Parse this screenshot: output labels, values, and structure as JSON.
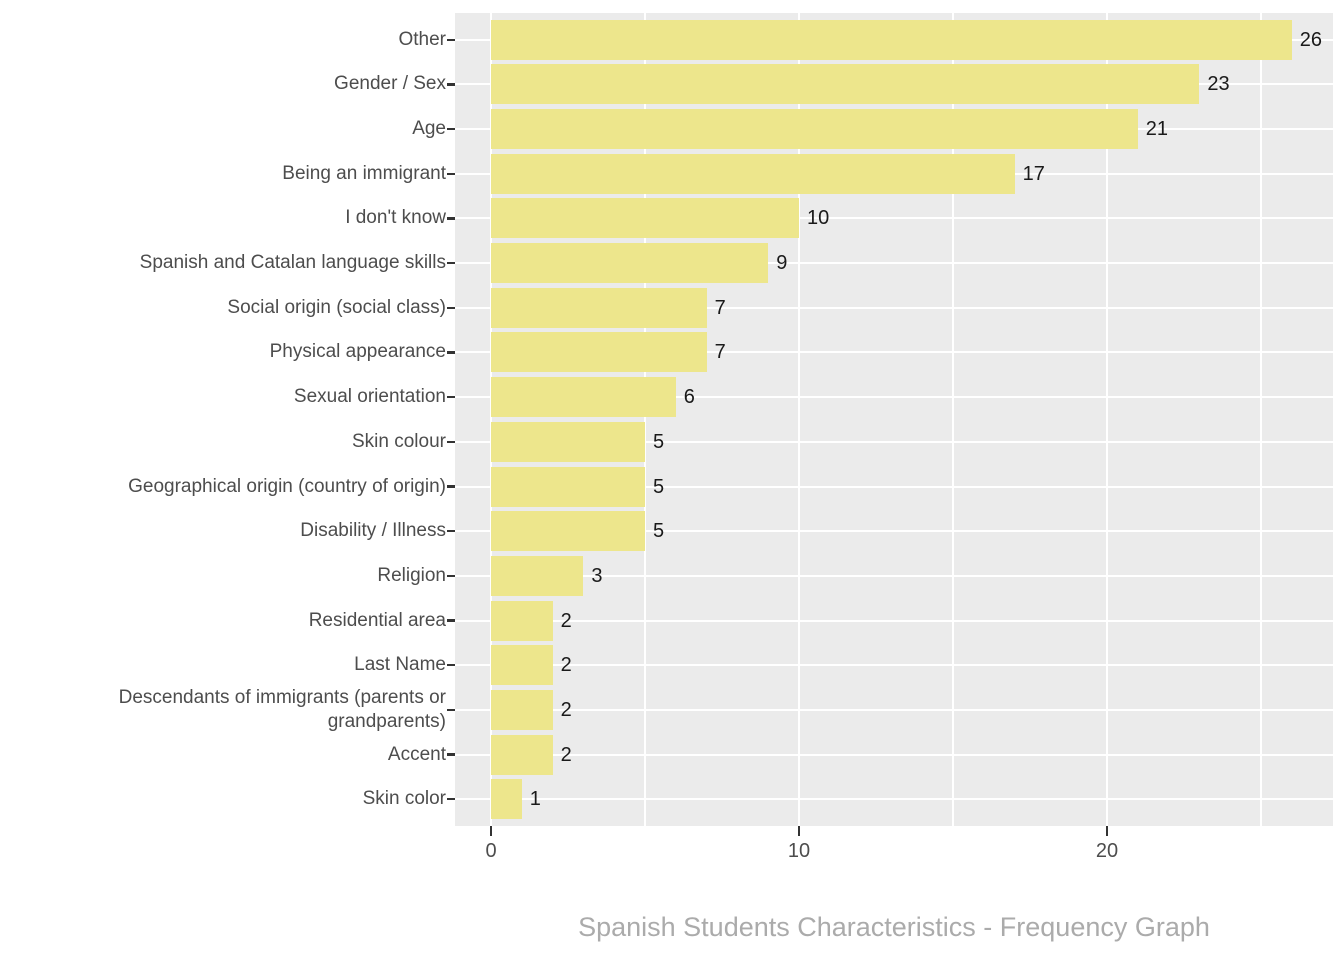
{
  "chart_data": {
    "type": "bar",
    "orientation": "horizontal",
    "title": "",
    "xlabel": "Spanish Students Characteristics - Frequency Graph",
    "ylabel": "",
    "categories": [
      "Other",
      "Gender / Sex",
      "Age",
      "Being an immigrant",
      "I don't know",
      "Spanish and Catalan language skills",
      "Social origin (social class)",
      "Physical appearance",
      "Sexual orientation",
      "Skin colour",
      "Geographical origin (country of origin)",
      "Disability / Illness",
      "Religion",
      "Residential area",
      "Last Name",
      "Descendants of immigrants (parents or grandparents)",
      "Accent",
      "Skin color"
    ],
    "values": [
      26,
      23,
      21,
      17,
      10,
      9,
      7,
      7,
      6,
      5,
      5,
      5,
      3,
      2,
      2,
      2,
      2,
      1
    ],
    "value_labels": [
      "26",
      "23",
      "21",
      "17",
      "10",
      "9",
      "7",
      "7",
      "6",
      "5",
      "5",
      "5",
      "3",
      "2",
      "2",
      "2",
      "2",
      "1"
    ],
    "x_tick_labels": [
      "0",
      "10",
      "20"
    ],
    "x_major_ticks": [
      0,
      10,
      20
    ],
    "x_minor_ticks": [
      5,
      15,
      25
    ],
    "xlim": [
      -1.3,
      27.3
    ],
    "grid": "on",
    "legend": "none",
    "colors": {
      "bar_fill": "#EDE68C",
      "panel_background": "#EBEBEB",
      "gridline": "#FFFFFF",
      "axis_text": "#4D4D4D",
      "tick_mark": "#333333",
      "value_label": "#1A1A1A",
      "axis_title": "#ABABAB"
    }
  }
}
